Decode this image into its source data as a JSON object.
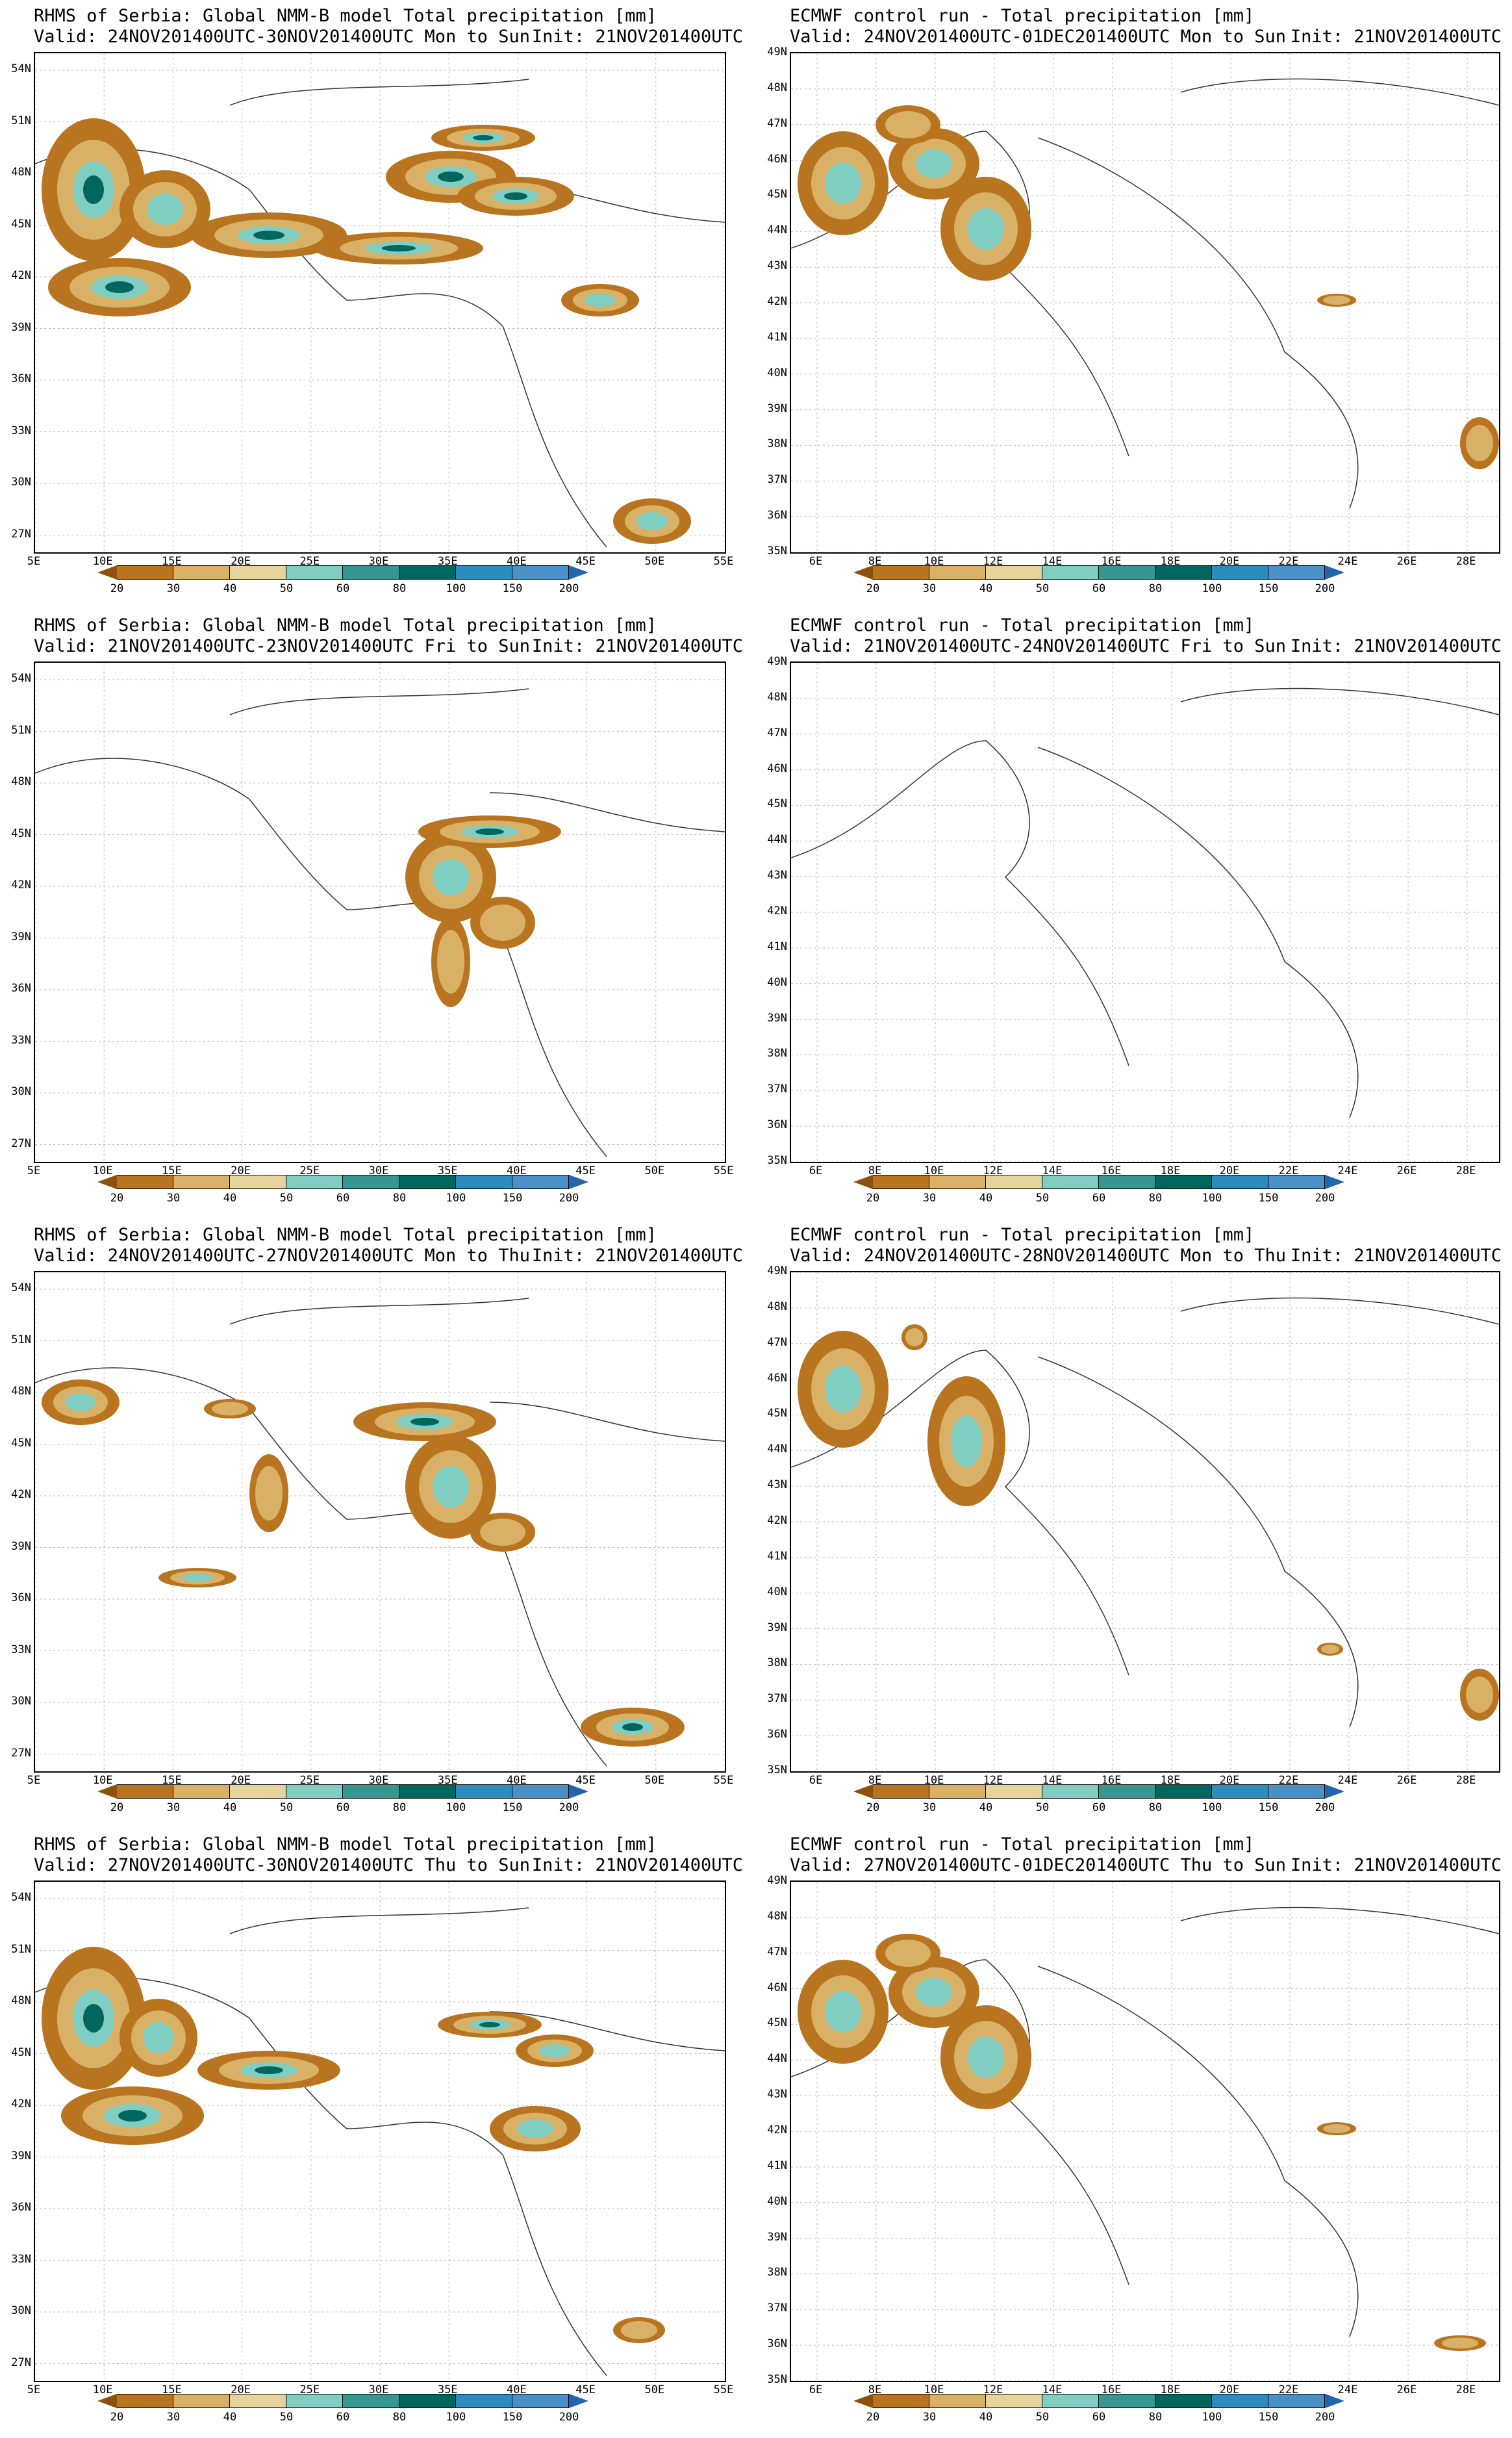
{
  "left_column": {
    "axis": {
      "yticks": [
        "54N",
        "51N",
        "48N",
        "45N",
        "42N",
        "39N",
        "36N",
        "33N",
        "30N",
        "27N"
      ],
      "xticks": [
        "5E",
        "10E",
        "15E",
        "20E",
        "25E",
        "30E",
        "35E",
        "40E",
        "45E",
        "50E",
        "55E"
      ]
    },
    "panels": [
      {
        "line1": "RHMS of Serbia: Global NMM-B model Total precipitation [mm]",
        "line2": "Valid: 24NOV201400UTC-30NOV201400UTC Mon to Sun",
        "init": "Init: 21NOV201400UTC"
      },
      {
        "line1": "RHMS of Serbia: Global NMM-B model Total precipitation [mm]",
        "line2": "Valid: 21NOV201400UTC-23NOV201400UTC Fri to Sun",
        "init": "Init: 21NOV201400UTC"
      },
      {
        "line1": "RHMS of Serbia: Global NMM-B model Total precipitation [mm]",
        "line2": "Valid: 24NOV201400UTC-27NOV201400UTC Mon to Thu",
        "init": "Init: 21NOV201400UTC"
      },
      {
        "line1": "RHMS of Serbia: Global NMM-B model Total precipitation [mm]",
        "line2": "Valid: 27NOV201400UTC-30NOV201400UTC Thu to Sun",
        "init": "Init: 21NOV201400UTC"
      }
    ]
  },
  "right_column": {
    "axis": {
      "yticks": [
        "49N",
        "48N",
        "47N",
        "46N",
        "45N",
        "44N",
        "43N",
        "42N",
        "41N",
        "40N",
        "39N",
        "38N",
        "37N",
        "36N",
        "35N"
      ],
      "xticks": [
        "6E",
        "8E",
        "10E",
        "12E",
        "14E",
        "16E",
        "18E",
        "20E",
        "22E",
        "24E",
        "26E",
        "28E"
      ]
    },
    "panels": [
      {
        "line1": "ECMWF control run - Total precipitation [mm]",
        "line2": "Valid: 24NOV201400UTC-01DEC201400UTC Mon to Sun",
        "init": "Init: 21NOV201400UTC"
      },
      {
        "line1": "ECMWF control run - Total precipitation [mm]",
        "line2": "Valid: 21NOV201400UTC-24NOV201400UTC Fri to Sun",
        "init": "Init: 21NOV201400UTC"
      },
      {
        "line1": "ECMWF control run - Total precipitation [mm]",
        "line2": "Valid: 24NOV201400UTC-28NOV201400UTC Mon to Thu",
        "init": "Init: 21NOV201400UTC"
      },
      {
        "line1": "ECMWF control run - Total precipitation [mm]",
        "line2": "Valid: 27NOV201400UTC-01DEC201400UTC Thu to Sun",
        "init": "Init: 21NOV201400UTC"
      }
    ]
  },
  "colorbar": {
    "labels": [
      "20",
      "30",
      "40",
      "50",
      "60",
      "80",
      "100",
      "150",
      "200"
    ],
    "colors": [
      "#8c510a",
      "#b8741e",
      "#d8b066",
      "#e6d49a",
      "#80cdc1",
      "#35978f",
      "#01665e",
      "#2b8cbe",
      "#4a90c9",
      "#2166ac"
    ]
  }
}
